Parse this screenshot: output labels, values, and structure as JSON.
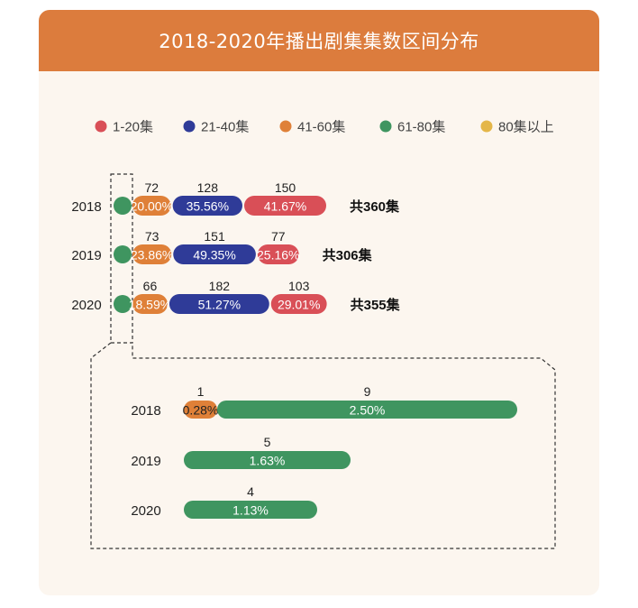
{
  "chart_data": {
    "type": "bar",
    "title": "2018-2020年播出剧集集数区间分布",
    "legend": [
      "1-20集",
      "21-40集",
      "41-60集",
      "61-80集",
      "80集以上"
    ],
    "legend_placement": "top",
    "colors": {
      "1-20集": "#d94f57",
      "21-40集": "#2f3b98",
      "41-60集": "#df8038",
      "61-80集": "#3f9560",
      "80集以上": "#e4b648"
    },
    "categories": [
      "2018",
      "2019",
      "2020"
    ],
    "totals": [
      "共360集",
      "共306集",
      "共355集"
    ],
    "series": [
      {
        "name": "61-80集",
        "counts": [
          9,
          5,
          4
        ],
        "percents": [
          "2.50%",
          "1.63%",
          "1.13%"
        ]
      },
      {
        "name": "41-60集",
        "counts": [
          72,
          73,
          66
        ],
        "percents": [
          "20.00%",
          "23.86%",
          "18.59%"
        ]
      },
      {
        "name": "21-40集",
        "counts": [
          128,
          151,
          182
        ],
        "percents": [
          "35.56%",
          "49.35%",
          "51.27%"
        ]
      },
      {
        "name": "1-20集",
        "counts": [
          150,
          77,
          103
        ],
        "percents": [
          "41.67%",
          "25.16%",
          "29.01%"
        ]
      },
      {
        "name": "80集以上",
        "counts": [
          1,
          0,
          0
        ],
        "percents": [
          "0.28%",
          "",
          ""
        ]
      }
    ],
    "detail": {
      "categories": [
        "2018",
        "2019",
        "2020"
      ],
      "segments": [
        {
          "year": "2018",
          "series": "80集以上",
          "count": 1,
          "percent": "0.28%",
          "color_key": "41-60集"
        },
        {
          "year": "2018",
          "series": "61-80集",
          "count": 9,
          "percent": "2.50%"
        },
        {
          "year": "2019",
          "series": "61-80集",
          "count": 5,
          "percent": "1.63%"
        },
        {
          "year": "2020",
          "series": "61-80集",
          "count": 4,
          "percent": "1.13%"
        }
      ]
    }
  }
}
